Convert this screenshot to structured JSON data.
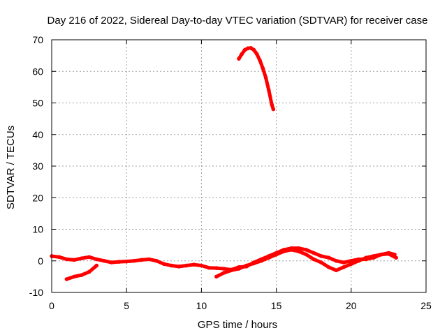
{
  "chart_data": {
    "type": "scatter",
    "title": "Day 216 of 2022, Sidereal Day-to-day VTEC variation (SDTVAR) for receiver case",
    "xlabel": "GPS time / hours",
    "ylabel": "SDTVAR / TECUs",
    "xlim": [
      0,
      25
    ],
    "ylim": [
      -10,
      70
    ],
    "xticks": [
      0,
      5,
      10,
      15,
      20,
      25
    ],
    "yticks": [
      -10,
      0,
      10,
      20,
      30,
      40,
      50,
      60,
      70
    ],
    "grid": true,
    "series_color": "#ff0000",
    "series": [
      {
        "name": "main-band",
        "points": [
          [
            0,
            1.5
          ],
          [
            0.5,
            1.2
          ],
          [
            1,
            0.5
          ],
          [
            1.5,
            0.3
          ],
          [
            2,
            0.8
          ],
          [
            2.5,
            1.2
          ],
          [
            3,
            0.5
          ],
          [
            3.5,
            0
          ],
          [
            4,
            -0.5
          ],
          [
            4.5,
            -0.3
          ],
          [
            5,
            -0.2
          ],
          [
            5.5,
            0
          ],
          [
            6,
            0.3
          ],
          [
            6.5,
            0.5
          ],
          [
            7,
            0
          ],
          [
            7.5,
            -1
          ],
          [
            8,
            -1.5
          ],
          [
            8.5,
            -1.8
          ],
          [
            9,
            -1.5
          ],
          [
            9.5,
            -1.2
          ],
          [
            10,
            -1.5
          ],
          [
            10.5,
            -2.2
          ],
          [
            11,
            -2.3
          ],
          [
            11.5,
            -2.5
          ],
          [
            12,
            -2.8
          ],
          [
            12.5,
            -2
          ],
          [
            13,
            -1.8
          ],
          [
            13.5,
            -0.5
          ],
          [
            14,
            0.5
          ],
          [
            14.5,
            1.5
          ],
          [
            15,
            2.5
          ],
          [
            15.5,
            3.5
          ],
          [
            16,
            4
          ],
          [
            16.5,
            4
          ],
          [
            17,
            3.5
          ],
          [
            17.5,
            2.5
          ],
          [
            18,
            1.5
          ],
          [
            18.5,
            1
          ],
          [
            19,
            0
          ],
          [
            19.5,
            -0.5
          ],
          [
            20,
            0
          ],
          [
            20.5,
            0.5
          ],
          [
            21,
            0.5
          ],
          [
            21.5,
            1
          ],
          [
            22,
            2
          ],
          [
            22.5,
            2.5
          ],
          [
            22.9,
            2
          ]
        ]
      },
      {
        "name": "lower-band",
        "points": [
          [
            1,
            -5.8
          ],
          [
            1.5,
            -5
          ],
          [
            2,
            -4.5
          ],
          [
            2.5,
            -3.5
          ],
          [
            3,
            -1.5
          ],
          [
            11,
            -5
          ],
          [
            11.5,
            -3.8
          ],
          [
            12,
            -3
          ],
          [
            12.5,
            -2.5
          ],
          [
            13,
            -1.5
          ],
          [
            13.5,
            -0.8
          ],
          [
            14,
            0
          ],
          [
            14.5,
            1
          ],
          [
            15,
            2
          ],
          [
            15.5,
            3
          ],
          [
            16,
            3.5
          ],
          [
            16.5,
            3
          ],
          [
            17,
            2
          ],
          [
            17.5,
            0.5
          ],
          [
            18,
            -0.5
          ],
          [
            18.5,
            -2
          ],
          [
            19,
            -3
          ],
          [
            19.5,
            -2
          ],
          [
            20,
            -1
          ],
          [
            20.5,
            0
          ],
          [
            21,
            1
          ],
          [
            21.5,
            1.5
          ],
          [
            22,
            2
          ],
          [
            22.5,
            2.2
          ],
          [
            23,
            1
          ]
        ]
      },
      {
        "name": "high-arc",
        "points": [
          [
            12.5,
            64
          ],
          [
            12.7,
            65.5
          ],
          [
            12.9,
            66.8
          ],
          [
            13.1,
            67.3
          ],
          [
            13.3,
            67.4
          ],
          [
            13.5,
            66.8
          ],
          [
            13.7,
            65.5
          ],
          [
            13.9,
            63.5
          ],
          [
            14.1,
            61
          ],
          [
            14.3,
            58
          ],
          [
            14.5,
            54
          ],
          [
            14.7,
            49.5
          ],
          [
            14.8,
            48
          ]
        ]
      }
    ]
  }
}
